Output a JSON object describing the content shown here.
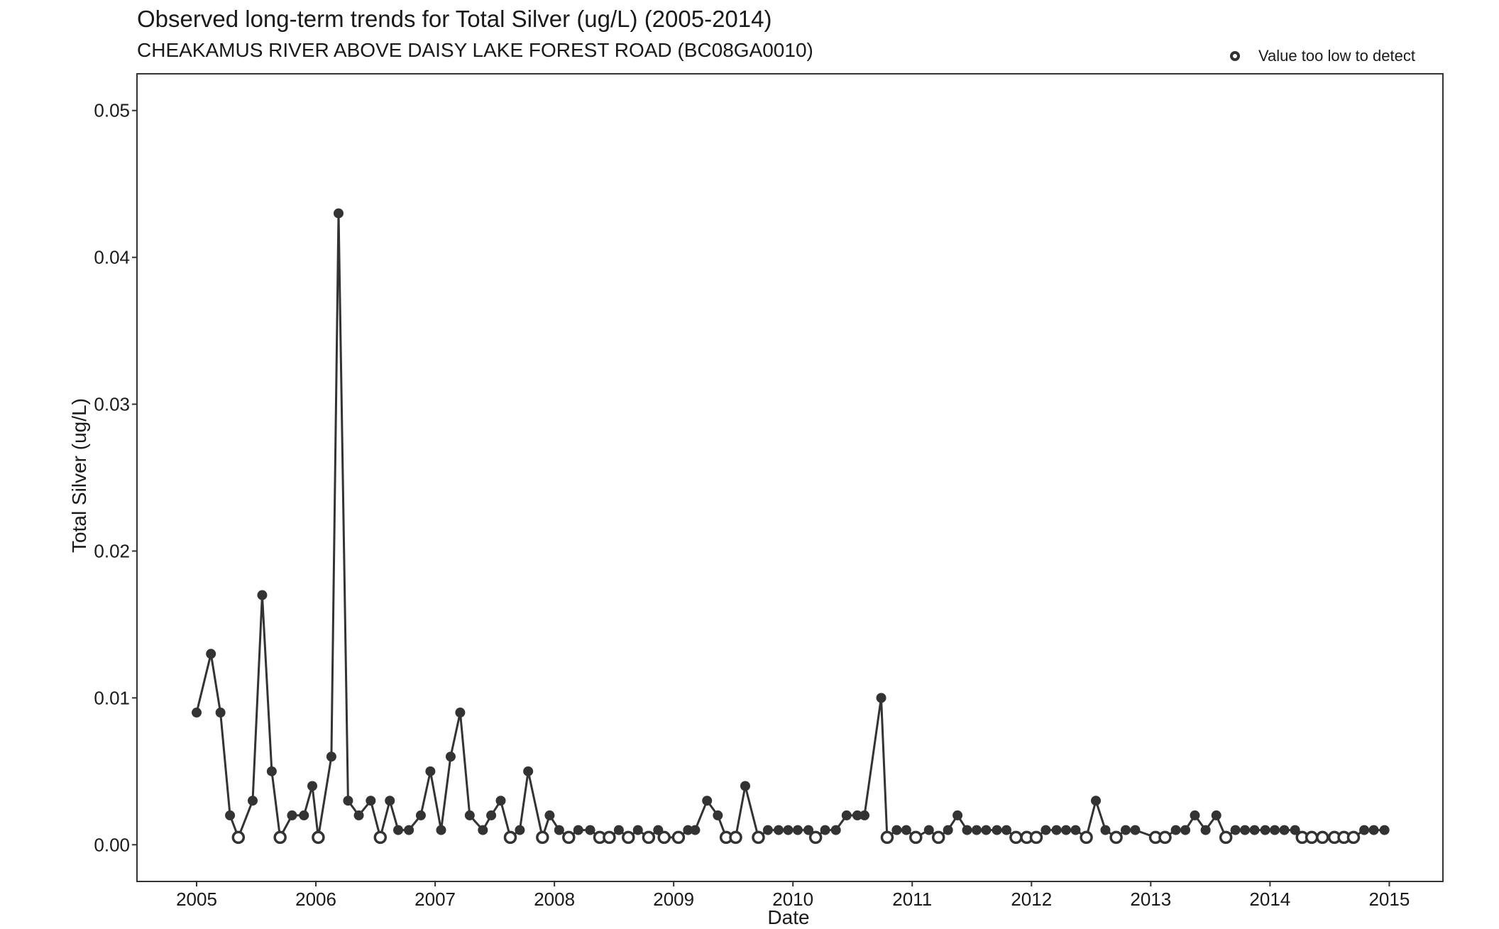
{
  "chart_data": {
    "type": "line",
    "title": "Observed long-term trends for Total Silver (ug/L) (2005-2014)",
    "subtitle": "CHEAKAMUS RIVER ABOVE DAISY LAKE FOREST ROAD (BC08GA0010)",
    "xlabel": "Date",
    "ylabel": "Total Silver (ug/L)",
    "legend": {
      "label": "Value too low to detect",
      "placement": "top-right"
    },
    "xlim": [
      2004.5,
      2015.45
    ],
    "ylim": [
      -0.0025,
      0.0525
    ],
    "x_ticks": [
      "2005",
      "2006",
      "2007",
      "2008",
      "2009",
      "2010",
      "2011",
      "2012",
      "2013",
      "2014",
      "2015"
    ],
    "y_ticks": [
      "0.00",
      "0.01",
      "0.02",
      "0.03",
      "0.04",
      "0.05"
    ],
    "grid": false,
    "colors": {
      "line": "#333333",
      "point": "#333333",
      "frame": "#333333"
    },
    "series": [
      {
        "points": [
          {
            "x": 2005.0,
            "y": 0.009,
            "below_detection": false
          },
          {
            "x": 2005.12,
            "y": 0.013,
            "below_detection": false
          },
          {
            "x": 2005.2,
            "y": 0.009,
            "below_detection": false
          },
          {
            "x": 2005.28,
            "y": 0.002,
            "below_detection": false
          },
          {
            "x": 2005.35,
            "y": 0.0005,
            "below_detection": true
          },
          {
            "x": 2005.47,
            "y": 0.003,
            "below_detection": false
          },
          {
            "x": 2005.55,
            "y": 0.017,
            "below_detection": false
          },
          {
            "x": 2005.63,
            "y": 0.005,
            "below_detection": false
          },
          {
            "x": 2005.7,
            "y": 0.0005,
            "below_detection": true
          },
          {
            "x": 2005.8,
            "y": 0.002,
            "below_detection": false
          },
          {
            "x": 2005.9,
            "y": 0.002,
            "below_detection": false
          },
          {
            "x": 2005.97,
            "y": 0.004,
            "below_detection": false
          },
          {
            "x": 2006.02,
            "y": 0.0005,
            "below_detection": true
          },
          {
            "x": 2006.13,
            "y": 0.006,
            "below_detection": false
          },
          {
            "x": 2006.19,
            "y": 0.043,
            "below_detection": false
          },
          {
            "x": 2006.27,
            "y": 0.003,
            "below_detection": false
          },
          {
            "x": 2006.36,
            "y": 0.002,
            "below_detection": false
          },
          {
            "x": 2006.46,
            "y": 0.003,
            "below_detection": false
          },
          {
            "x": 2006.54,
            "y": 0.0005,
            "below_detection": true
          },
          {
            "x": 2006.62,
            "y": 0.003,
            "below_detection": false
          },
          {
            "x": 2006.69,
            "y": 0.001,
            "below_detection": false
          },
          {
            "x": 2006.78,
            "y": 0.001,
            "below_detection": false
          },
          {
            "x": 2006.88,
            "y": 0.002,
            "below_detection": false
          },
          {
            "x": 2006.96,
            "y": 0.005,
            "below_detection": false
          },
          {
            "x": 2007.05,
            "y": 0.001,
            "below_detection": false
          },
          {
            "x": 2007.13,
            "y": 0.006,
            "below_detection": false
          },
          {
            "x": 2007.21,
            "y": 0.009,
            "below_detection": false
          },
          {
            "x": 2007.29,
            "y": 0.002,
            "below_detection": false
          },
          {
            "x": 2007.4,
            "y": 0.001,
            "below_detection": false
          },
          {
            "x": 2007.47,
            "y": 0.002,
            "below_detection": false
          },
          {
            "x": 2007.55,
            "y": 0.003,
            "below_detection": false
          },
          {
            "x": 2007.63,
            "y": 0.0005,
            "below_detection": true
          },
          {
            "x": 2007.71,
            "y": 0.001,
            "below_detection": false
          },
          {
            "x": 2007.78,
            "y": 0.005,
            "below_detection": false
          },
          {
            "x": 2007.9,
            "y": 0.0005,
            "below_detection": true
          },
          {
            "x": 2007.96,
            "y": 0.002,
            "below_detection": false
          },
          {
            "x": 2008.04,
            "y": 0.001,
            "below_detection": false
          },
          {
            "x": 2008.12,
            "y": 0.0005,
            "below_detection": true
          },
          {
            "x": 2008.2,
            "y": 0.001,
            "below_detection": false
          },
          {
            "x": 2008.3,
            "y": 0.001,
            "below_detection": false
          },
          {
            "x": 2008.38,
            "y": 0.0005,
            "below_detection": true
          },
          {
            "x": 2008.46,
            "y": 0.0005,
            "below_detection": true
          },
          {
            "x": 2008.54,
            "y": 0.001,
            "below_detection": false
          },
          {
            "x": 2008.62,
            "y": 0.0005,
            "below_detection": true
          },
          {
            "x": 2008.7,
            "y": 0.001,
            "below_detection": false
          },
          {
            "x": 2008.79,
            "y": 0.0005,
            "below_detection": true
          },
          {
            "x": 2008.87,
            "y": 0.001,
            "below_detection": false
          },
          {
            "x": 2008.92,
            "y": 0.0005,
            "below_detection": true
          },
          {
            "x": 2009.04,
            "y": 0.0005,
            "below_detection": true
          },
          {
            "x": 2009.12,
            "y": 0.001,
            "below_detection": false
          },
          {
            "x": 2009.18,
            "y": 0.001,
            "below_detection": false
          },
          {
            "x": 2009.28,
            "y": 0.003,
            "below_detection": false
          },
          {
            "x": 2009.37,
            "y": 0.002,
            "below_detection": false
          },
          {
            "x": 2009.44,
            "y": 0.0005,
            "below_detection": true
          },
          {
            "x": 2009.52,
            "y": 0.0005,
            "below_detection": true
          },
          {
            "x": 2009.6,
            "y": 0.004,
            "below_detection": false
          },
          {
            "x": 2009.71,
            "y": 0.0005,
            "below_detection": true
          },
          {
            "x": 2009.79,
            "y": 0.001,
            "below_detection": false
          },
          {
            "x": 2009.88,
            "y": 0.001,
            "below_detection": false
          },
          {
            "x": 2009.96,
            "y": 0.001,
            "below_detection": false
          },
          {
            "x": 2010.04,
            "y": 0.001,
            "below_detection": false
          },
          {
            "x": 2010.13,
            "y": 0.001,
            "below_detection": false
          },
          {
            "x": 2010.19,
            "y": 0.0005,
            "below_detection": true
          },
          {
            "x": 2010.27,
            "y": 0.001,
            "below_detection": false
          },
          {
            "x": 2010.36,
            "y": 0.001,
            "below_detection": false
          },
          {
            "x": 2010.45,
            "y": 0.002,
            "below_detection": false
          },
          {
            "x": 2010.54,
            "y": 0.002,
            "below_detection": false
          },
          {
            "x": 2010.6,
            "y": 0.002,
            "below_detection": false
          },
          {
            "x": 2010.74,
            "y": 0.01,
            "below_detection": false
          },
          {
            "x": 2010.79,
            "y": 0.0005,
            "below_detection": true
          },
          {
            "x": 2010.87,
            "y": 0.001,
            "below_detection": false
          },
          {
            "x": 2010.95,
            "y": 0.001,
            "below_detection": false
          },
          {
            "x": 2011.03,
            "y": 0.0005,
            "below_detection": true
          },
          {
            "x": 2011.14,
            "y": 0.001,
            "below_detection": false
          },
          {
            "x": 2011.22,
            "y": 0.0005,
            "below_detection": true
          },
          {
            "x": 2011.3,
            "y": 0.001,
            "below_detection": false
          },
          {
            "x": 2011.38,
            "y": 0.002,
            "below_detection": false
          },
          {
            "x": 2011.46,
            "y": 0.001,
            "below_detection": false
          },
          {
            "x": 2011.54,
            "y": 0.001,
            "below_detection": false
          },
          {
            "x": 2011.62,
            "y": 0.001,
            "below_detection": false
          },
          {
            "x": 2011.71,
            "y": 0.001,
            "below_detection": false
          },
          {
            "x": 2011.79,
            "y": 0.001,
            "below_detection": false
          },
          {
            "x": 2011.87,
            "y": 0.0005,
            "below_detection": true
          },
          {
            "x": 2011.96,
            "y": 0.0005,
            "below_detection": true
          },
          {
            "x": 2012.04,
            "y": 0.0005,
            "below_detection": true
          },
          {
            "x": 2012.12,
            "y": 0.001,
            "below_detection": false
          },
          {
            "x": 2012.21,
            "y": 0.001,
            "below_detection": false
          },
          {
            "x": 2012.29,
            "y": 0.001,
            "below_detection": false
          },
          {
            "x": 2012.37,
            "y": 0.001,
            "below_detection": false
          },
          {
            "x": 2012.46,
            "y": 0.0005,
            "below_detection": true
          },
          {
            "x": 2012.54,
            "y": 0.003,
            "below_detection": false
          },
          {
            "x": 2012.62,
            "y": 0.001,
            "below_detection": false
          },
          {
            "x": 2012.71,
            "y": 0.0005,
            "below_detection": true
          },
          {
            "x": 2012.79,
            "y": 0.001,
            "below_detection": false
          },
          {
            "x": 2012.87,
            "y": 0.001,
            "below_detection": false
          },
          {
            "x": 2013.04,
            "y": 0.0005,
            "below_detection": true
          },
          {
            "x": 2013.12,
            "y": 0.0005,
            "below_detection": true
          },
          {
            "x": 2013.21,
            "y": 0.001,
            "below_detection": false
          },
          {
            "x": 2013.29,
            "y": 0.001,
            "below_detection": false
          },
          {
            "x": 2013.37,
            "y": 0.002,
            "below_detection": false
          },
          {
            "x": 2013.46,
            "y": 0.001,
            "below_detection": false
          },
          {
            "x": 2013.55,
            "y": 0.002,
            "below_detection": false
          },
          {
            "x": 2013.63,
            "y": 0.0005,
            "below_detection": true
          },
          {
            "x": 2013.71,
            "y": 0.001,
            "below_detection": false
          },
          {
            "x": 2013.79,
            "y": 0.001,
            "below_detection": false
          },
          {
            "x": 2013.87,
            "y": 0.001,
            "below_detection": false
          },
          {
            "x": 2013.96,
            "y": 0.001,
            "below_detection": false
          },
          {
            "x": 2014.04,
            "y": 0.001,
            "below_detection": false
          },
          {
            "x": 2014.12,
            "y": 0.001,
            "below_detection": false
          },
          {
            "x": 2014.21,
            "y": 0.001,
            "below_detection": false
          },
          {
            "x": 2014.27,
            "y": 0.0005,
            "below_detection": true
          },
          {
            "x": 2014.35,
            "y": 0.0005,
            "below_detection": true
          },
          {
            "x": 2014.44,
            "y": 0.0005,
            "below_detection": true
          },
          {
            "x": 2014.54,
            "y": 0.0005,
            "below_detection": true
          },
          {
            "x": 2014.62,
            "y": 0.0005,
            "below_detection": true
          },
          {
            "x": 2014.7,
            "y": 0.0005,
            "below_detection": true
          },
          {
            "x": 2014.79,
            "y": 0.001,
            "below_detection": false
          },
          {
            "x": 2014.87,
            "y": 0.001,
            "below_detection": false
          },
          {
            "x": 2014.96,
            "y": 0.001,
            "below_detection": false
          }
        ]
      }
    ]
  }
}
